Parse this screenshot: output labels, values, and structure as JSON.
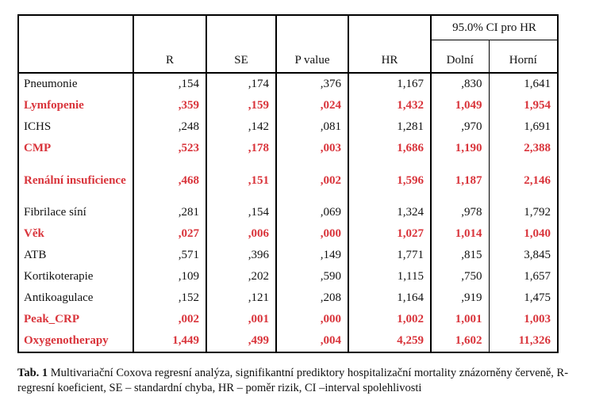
{
  "table": {
    "ci_group_label": "95.0% CI pro HR",
    "columns": [
      "R",
      "SE",
      "P value",
      "HR",
      "Dolní",
      "Horní"
    ],
    "rows": [
      {
        "name": "Pneumonie",
        "values": [
          ",154",
          ",174",
          ",376",
          "1,167",
          ",830",
          "1,641"
        ],
        "significant": false
      },
      {
        "name": "Lymfopenie",
        "values": [
          ",359",
          ",159",
          ",024",
          "1,432",
          "1,049",
          "1,954"
        ],
        "significant": true
      },
      {
        "name": "ICHS",
        "values": [
          ",248",
          ",142",
          ",081",
          "1,281",
          ",970",
          "1,691"
        ],
        "significant": false
      },
      {
        "name": "CMP",
        "values": [
          ",523",
          ",178",
          ",003",
          "1,686",
          "1,190",
          "2,388"
        ],
        "significant": true
      },
      {
        "name": "Renální insuficience",
        "values": [
          ",468",
          ",151",
          ",002",
          "1,596",
          "1,187",
          "2,146"
        ],
        "significant": true
      },
      {
        "name": "Fibrilace síní",
        "values": [
          ",281",
          ",154",
          ",069",
          "1,324",
          ",978",
          "1,792"
        ],
        "significant": false
      },
      {
        "name": "Věk",
        "values": [
          ",027",
          ",006",
          ",000",
          "1,027",
          "1,014",
          "1,040"
        ],
        "significant": true
      },
      {
        "name": "ATB",
        "values": [
          ",571",
          ",396",
          ",149",
          "1,771",
          ",815",
          "3,845"
        ],
        "significant": false
      },
      {
        "name": "Kortikoterapie",
        "values": [
          ",109",
          ",202",
          ",590",
          "1,115",
          ",750",
          "1,657"
        ],
        "significant": false
      },
      {
        "name": "Antikoagulace",
        "values": [
          ",152",
          ",121",
          ",208",
          "1,164",
          ",919",
          "1,475"
        ],
        "significant": false
      },
      {
        "name": "Peak_CRP",
        "values": [
          ",002",
          ",001",
          ",000",
          "1,002",
          "1,001",
          "1,003"
        ],
        "significant": true
      },
      {
        "name": "Oxygenotherapy",
        "values": [
          "1,449",
          ",499",
          ",004",
          "4,259",
          "1,602",
          "11,326"
        ],
        "significant": true
      }
    ],
    "significant_color": "#d9343b"
  },
  "caption": {
    "label": "Tab. 1",
    "text": " Multivariační Coxova regresní analýza, signifikantní prediktory hospitalizační mortality znázorněny červeně, R- regresní koeficient, SE – standardní chyba, HR – poměr rizik, CI –interval spolehlivosti"
  }
}
